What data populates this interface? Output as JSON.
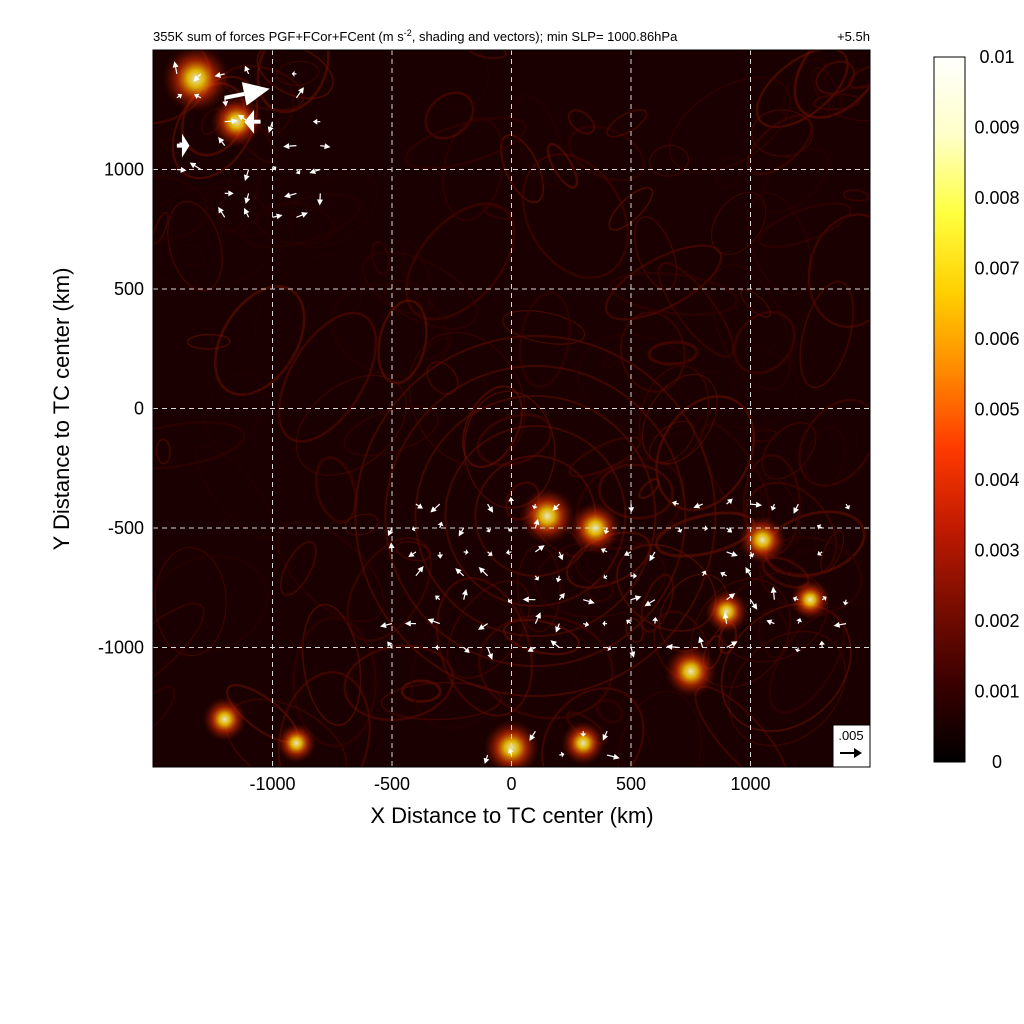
{
  "chart_data": {
    "type": "heatmap",
    "title": "355K sum of forces PGF+FCor+FCent (m s⁻², shading and vectors); min SLP= 1000.86hPa",
    "title_parts": {
      "prefix": "355K sum of forces PGF+FCor+FCent (m s",
      "superscript": "-2",
      "suffix": ", shading and vectors); min SLP= 1000.86hPa"
    },
    "time_label": "+5.5h",
    "xlabel": "X Distance to TC center (km)",
    "ylabel": "Y Distance to TC center (km)",
    "xlim": [
      -1500,
      1500
    ],
    "ylim": [
      -1500,
      1500
    ],
    "xticks": [
      -1000,
      -500,
      0,
      500,
      1000
    ],
    "yticks": [
      -1000,
      -500,
      0,
      500,
      1000
    ],
    "grid": true,
    "colorbar": {
      "range": [
        0,
        0.01
      ],
      "ticks": [
        "0.01",
        "0.009",
        "0.008",
        "0.007",
        "0.006",
        "0.005",
        "0.004",
        "0.003",
        "0.002",
        "0.001",
        "0"
      ],
      "colormap": [
        "#000000",
        "#3a0000",
        "#7a0d00",
        "#c21a00",
        "#ff3a00",
        "#ff8a00",
        "#ffd000",
        "#ffff40",
        "#ffffc8",
        "#ffffff"
      ]
    },
    "reference_vector": {
      "label": ".005",
      "value": 0.005
    },
    "hotspots": [
      {
        "x": -1320,
        "y": 1380,
        "value": 0.006
      },
      {
        "x": -1150,
        "y": 1200,
        "value": 0.004
      },
      {
        "x": 150,
        "y": -450,
        "value": 0.0045
      },
      {
        "x": 350,
        "y": -500,
        "value": 0.004
      },
      {
        "x": 1050,
        "y": -550,
        "value": 0.0035
      },
      {
        "x": 900,
        "y": -850,
        "value": 0.003
      },
      {
        "x": 750,
        "y": -1100,
        "value": 0.004
      },
      {
        "x": 0,
        "y": -1420,
        "value": 0.0045
      },
      {
        "x": 300,
        "y": -1400,
        "value": 0.003
      },
      {
        "x": -1200,
        "y": -1300,
        "value": 0.003
      },
      {
        "x": -900,
        "y": -1400,
        "value": 0.0025
      },
      {
        "x": 1250,
        "y": -800,
        "value": 0.0025
      }
    ],
    "large_vectors": [
      {
        "x": -1200,
        "y": 1300,
        "u": 0.0125,
        "v": 0.0025
      },
      {
        "x": -1050,
        "y": 1200,
        "u": -0.0045,
        "v": 0.0
      },
      {
        "x": -1400,
        "y": 1100,
        "u": 0.0035,
        "v": 0.0
      }
    ],
    "vector_grid_step_km": 100,
    "vector_regions": [
      {
        "x": [
          -1400,
          -800
        ],
        "y": [
          800,
          1400
        ]
      },
      {
        "x": [
          -500,
          1400
        ],
        "y": [
          -1000,
          -400
        ]
      },
      {
        "x": [
          -100,
          400
        ],
        "y": [
          -1450,
          -1300
        ]
      }
    ]
  }
}
